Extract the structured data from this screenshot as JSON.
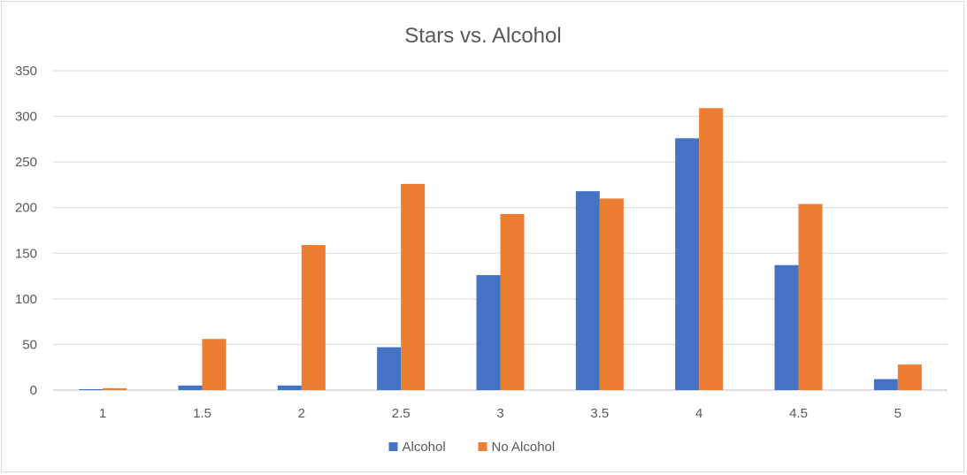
{
  "chart_data": {
    "type": "bar",
    "title": "Stars vs. Alcohol",
    "xlabel": "",
    "ylabel": "",
    "categories": [
      "1",
      "1.5",
      "2",
      "2.5",
      "3",
      "3.5",
      "4",
      "4.5",
      "5"
    ],
    "series": [
      {
        "name": "Alcohol",
        "color": "#4472C4",
        "values": [
          1,
          5,
          5,
          47,
          126,
          218,
          276,
          137,
          12
        ]
      },
      {
        "name": "No Alcohol",
        "color": "#ED7D31",
        "values": [
          2,
          56,
          159,
          226,
          193,
          210,
          309,
          204,
          28
        ]
      }
    ],
    "ylim": [
      0,
      350
    ],
    "yticks": [
      "0",
      "50",
      "100",
      "150",
      "200",
      "250",
      "300",
      "350"
    ],
    "grid": true,
    "legend": "bottom"
  }
}
